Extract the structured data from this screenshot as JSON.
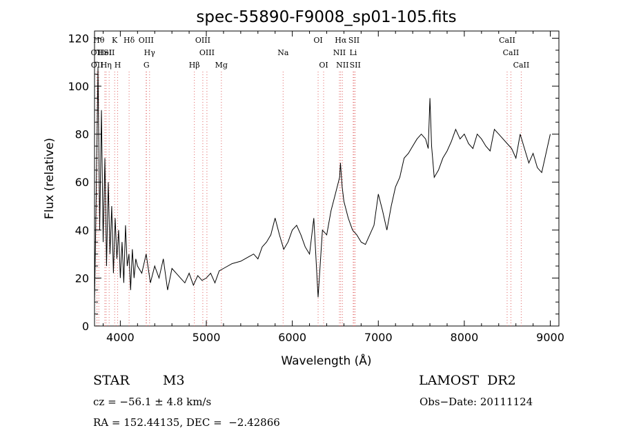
{
  "chart_data": {
    "type": "line",
    "title": "spec-55890-F9008_sp01-105.fits",
    "xlabel": "Wavelength (Å)",
    "ylabel": "Flux (relative)",
    "xlim": [
      3700,
      9100
    ],
    "ylim": [
      0,
      123
    ],
    "xticks": [
      4000,
      5000,
      6000,
      7000,
      8000,
      9000
    ],
    "yticks": [
      0,
      20,
      40,
      60,
      80,
      100,
      120
    ],
    "grid": false,
    "spectrum": {
      "x": [
        3700,
        3720,
        3740,
        3760,
        3780,
        3800,
        3820,
        3840,
        3860,
        3880,
        3900,
        3920,
        3940,
        3960,
        3980,
        4000,
        4020,
        4040,
        4060,
        4080,
        4100,
        4120,
        4140,
        4160,
        4180,
        4200,
        4250,
        4300,
        4350,
        4400,
        4450,
        4500,
        4550,
        4600,
        4650,
        4700,
        4750,
        4800,
        4850,
        4900,
        4950,
        5000,
        5050,
        5100,
        5150,
        5200,
        5300,
        5400,
        5500,
        5550,
        5600,
        5650,
        5700,
        5750,
        5800,
        5850,
        5900,
        5950,
        6000,
        6050,
        6100,
        6150,
        6200,
        6250,
        6300,
        6350,
        6400,
        6450,
        6500,
        6550,
        6560,
        6580,
        6600,
        6650,
        6700,
        6750,
        6800,
        6850,
        6900,
        6950,
        7000,
        7050,
        7100,
        7150,
        7200,
        7250,
        7300,
        7350,
        7400,
        7450,
        7500,
        7550,
        7580,
        7600,
        7620,
        7650,
        7700,
        7750,
        7800,
        7850,
        7900,
        7950,
        8000,
        8050,
        8100,
        8150,
        8200,
        8250,
        8300,
        8350,
        8400,
        8450,
        8500,
        8550,
        8600,
        8650,
        8700,
        8750,
        8800,
        8850,
        8900,
        8950,
        9000
      ],
      "y": [
        10,
        55,
        108,
        40,
        90,
        35,
        70,
        25,
        60,
        30,
        50,
        22,
        45,
        28,
        40,
        20,
        35,
        18,
        42,
        25,
        30,
        15,
        32,
        20,
        28,
        25,
        22,
        30,
        18,
        25,
        20,
        28,
        15,
        24,
        22,
        20,
        18,
        22,
        17,
        21,
        19,
        20,
        22,
        18,
        23,
        24,
        26,
        27,
        29,
        30,
        28,
        33,
        35,
        38,
        45,
        38,
        32,
        35,
        40,
        42,
        38,
        33,
        30,
        45,
        12,
        40,
        38,
        48,
        55,
        62,
        68,
        58,
        52,
        45,
        40,
        38,
        35,
        34,
        38,
        42,
        55,
        48,
        40,
        50,
        58,
        62,
        70,
        72,
        75,
        78,
        80,
        78,
        74,
        95,
        75,
        62,
        65,
        70,
        73,
        77,
        82,
        78,
        80,
        76,
        74,
        80,
        78,
        75,
        73,
        82,
        80,
        78,
        76,
        74,
        70,
        80,
        74,
        68,
        72,
        66,
        64,
        72,
        80
      ]
    },
    "lines": [
      {
        "label": "OII",
        "x": 3727,
        "row": 2
      },
      {
        "label": "OII",
        "x": 3729,
        "row": 3
      },
      {
        "label": "Hθ",
        "x": 3750,
        "row": 1
      },
      {
        "label": "HeI",
        "x": 3820,
        "row": 2
      },
      {
        "label": "Hη",
        "x": 3835,
        "row": 3
      },
      {
        "label": "SII",
        "x": 3870,
        "row": 2
      },
      {
        "label": "K",
        "x": 3934,
        "row": 1
      },
      {
        "label": "H",
        "x": 3969,
        "row": 3
      },
      {
        "label": "Hδ",
        "x": 4102,
        "row": 1
      },
      {
        "label": "OIII",
        "x": 4300,
        "row": 1
      },
      {
        "label": "Hγ",
        "x": 4340,
        "row": 2
      },
      {
        "label": "G",
        "x": 4304,
        "row": 3
      },
      {
        "label": "Hβ",
        "x": 4861,
        "row": 3
      },
      {
        "label": "OIII",
        "x": 4959,
        "row": 1
      },
      {
        "label": "OIII",
        "x": 5007,
        "row": 2
      },
      {
        "label": "Mg",
        "x": 5175,
        "row": 3
      },
      {
        "label": "Na",
        "x": 5893,
        "row": 2
      },
      {
        "label": "OI",
        "x": 6300,
        "row": 1
      },
      {
        "label": "OI",
        "x": 6364,
        "row": 3
      },
      {
        "label": "Hα",
        "x": 6563,
        "row": 1
      },
      {
        "label": "NII",
        "x": 6548,
        "row": 2
      },
      {
        "label": "NII",
        "x": 6583,
        "row": 3
      },
      {
        "label": "SII",
        "x": 6717,
        "row": 1
      },
      {
        "label": "Li",
        "x": 6708,
        "row": 2
      },
      {
        "label": "SII",
        "x": 6731,
        "row": 3
      },
      {
        "label": "CaII",
        "x": 8498,
        "row": 1
      },
      {
        "label": "CaII",
        "x": 8542,
        "row": 2
      },
      {
        "label": "CaII",
        "x": 8662,
        "row": 3
      }
    ]
  },
  "info": {
    "object_class": "STAR",
    "subclass": "M3",
    "survey": "LAMOST  DR2",
    "redshift": "cz = −56.1 ± 4.8 km/s",
    "obs_date": "Obs−Date: 20111124",
    "coords": "RA = 152.44135, DEC =  −2.42866"
  }
}
